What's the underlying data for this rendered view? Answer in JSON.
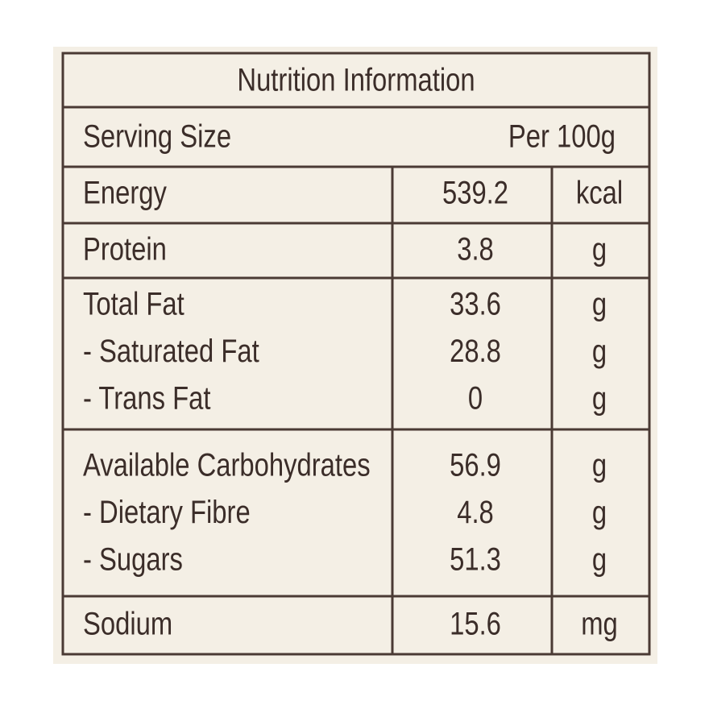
{
  "title": "Nutrition Information",
  "serving": {
    "label": "Serving Size",
    "value": "Per 100g"
  },
  "groups": [
    {
      "rows": [
        {
          "name": "Energy",
          "amount": "539.2",
          "unit": "kcal"
        }
      ]
    },
    {
      "rows": [
        {
          "name": "Protein",
          "amount": "3.8",
          "unit": "g"
        }
      ]
    },
    {
      "rows": [
        {
          "name": "Total Fat",
          "amount": "33.6",
          "unit": "g"
        },
        {
          "name": "- Saturated Fat",
          "amount": "28.8",
          "unit": "g"
        },
        {
          "name": "- Trans Fat",
          "amount": "0",
          "unit": "g"
        }
      ]
    },
    {
      "rows": [
        {
          "name": "Available Carbohydrates",
          "amount": "56.9",
          "unit": "g"
        },
        {
          "name": "- Dietary Fibre",
          "amount": "4.8",
          "unit": "g"
        },
        {
          "name": "- Sugars",
          "amount": "51.3",
          "unit": "g"
        }
      ]
    },
    {
      "rows": [
        {
          "name": "Sodium",
          "amount": "15.6",
          "unit": "mg"
        }
      ]
    }
  ]
}
